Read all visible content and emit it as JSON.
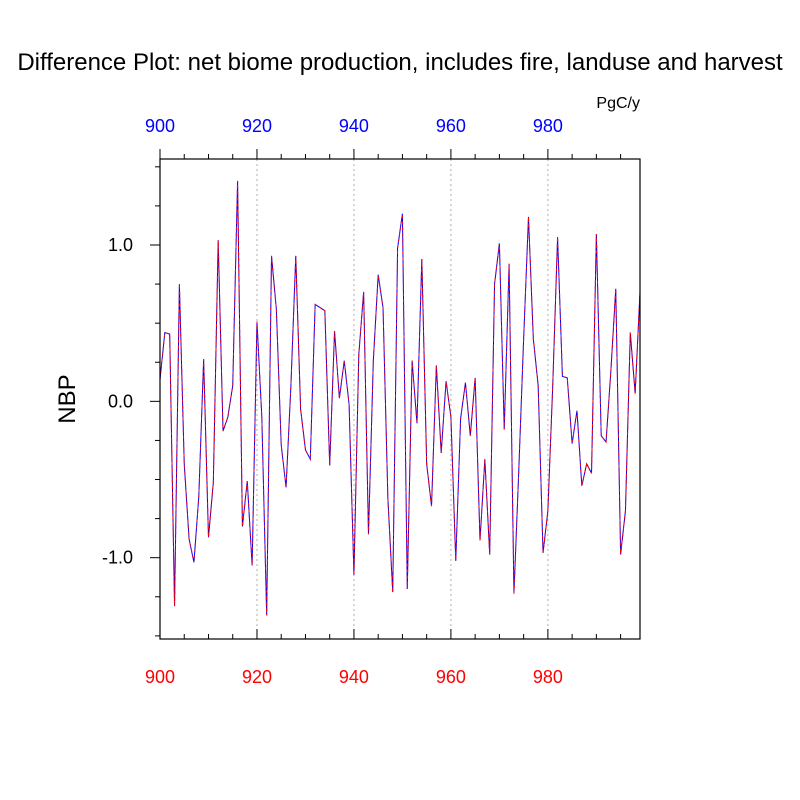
{
  "chart_data": {
    "type": "line",
    "title": "Difference Plot: net biome production, includes fire, landuse and harvest",
    "units": "PgC/y",
    "ylabel": "NBP",
    "xlim": [
      900,
      999
    ],
    "ylim": [
      -1.52,
      1.55
    ],
    "x_ticks_major": [
      900,
      920,
      940,
      960,
      980
    ],
    "x_ticks_minor_step": 5,
    "y_ticks_major": [
      -1.0,
      0.0,
      1.0
    ],
    "y_tick_labels": [
      "-1.0",
      "0.0",
      "1.0"
    ],
    "y_ticks_minor_step": 0.25,
    "grid": "vertical dashed at major x ticks",
    "bottom_axis_color": "#ff0000",
    "top_axis_color": "#0000ff",
    "series": [
      {
        "color_solid": "#0000ff",
        "color_dashed": "#ff0000",
        "x_start": 900,
        "values": [
          0.14,
          0.44,
          0.43,
          -1.31,
          0.75,
          -0.4,
          -0.88,
          -1.03,
          -0.61,
          0.27,
          -0.87,
          -0.52,
          1.03,
          -0.19,
          -0.1,
          0.1,
          1.41,
          -0.8,
          -0.51,
          -1.05,
          0.51,
          -0.1,
          -1.37,
          0.93,
          0.59,
          -0.28,
          -0.55,
          0.1,
          0.93,
          -0.05,
          -0.31,
          -0.37,
          0.62,
          0.6,
          0.58,
          -0.41,
          0.45,
          0.02,
          0.26,
          -0.02,
          -1.11,
          0.3,
          0.7,
          -0.85,
          0.26,
          0.81,
          0.6,
          -0.62,
          -1.22,
          0.98,
          1.2,
          -1.2,
          0.26,
          -0.14,
          0.91,
          -0.4,
          -0.67,
          0.23,
          -0.33,
          0.13,
          -0.1,
          -1.02,
          -0.11,
          0.12,
          -0.22,
          0.15,
          -0.89,
          -0.37,
          -0.98,
          0.75,
          1.01,
          -0.18,
          0.88,
          -1.23,
          -0.44,
          0.4,
          1.18,
          0.4,
          0.1,
          -0.97,
          -0.7,
          0.1,
          1.05,
          0.16,
          0.15,
          -0.27,
          -0.06,
          -0.54,
          -0.4,
          -0.46,
          1.07,
          -0.22,
          -0.26,
          0.2,
          0.72,
          -0.98,
          -0.7,
          0.44,
          0.05,
          0.7
        ]
      }
    ]
  }
}
